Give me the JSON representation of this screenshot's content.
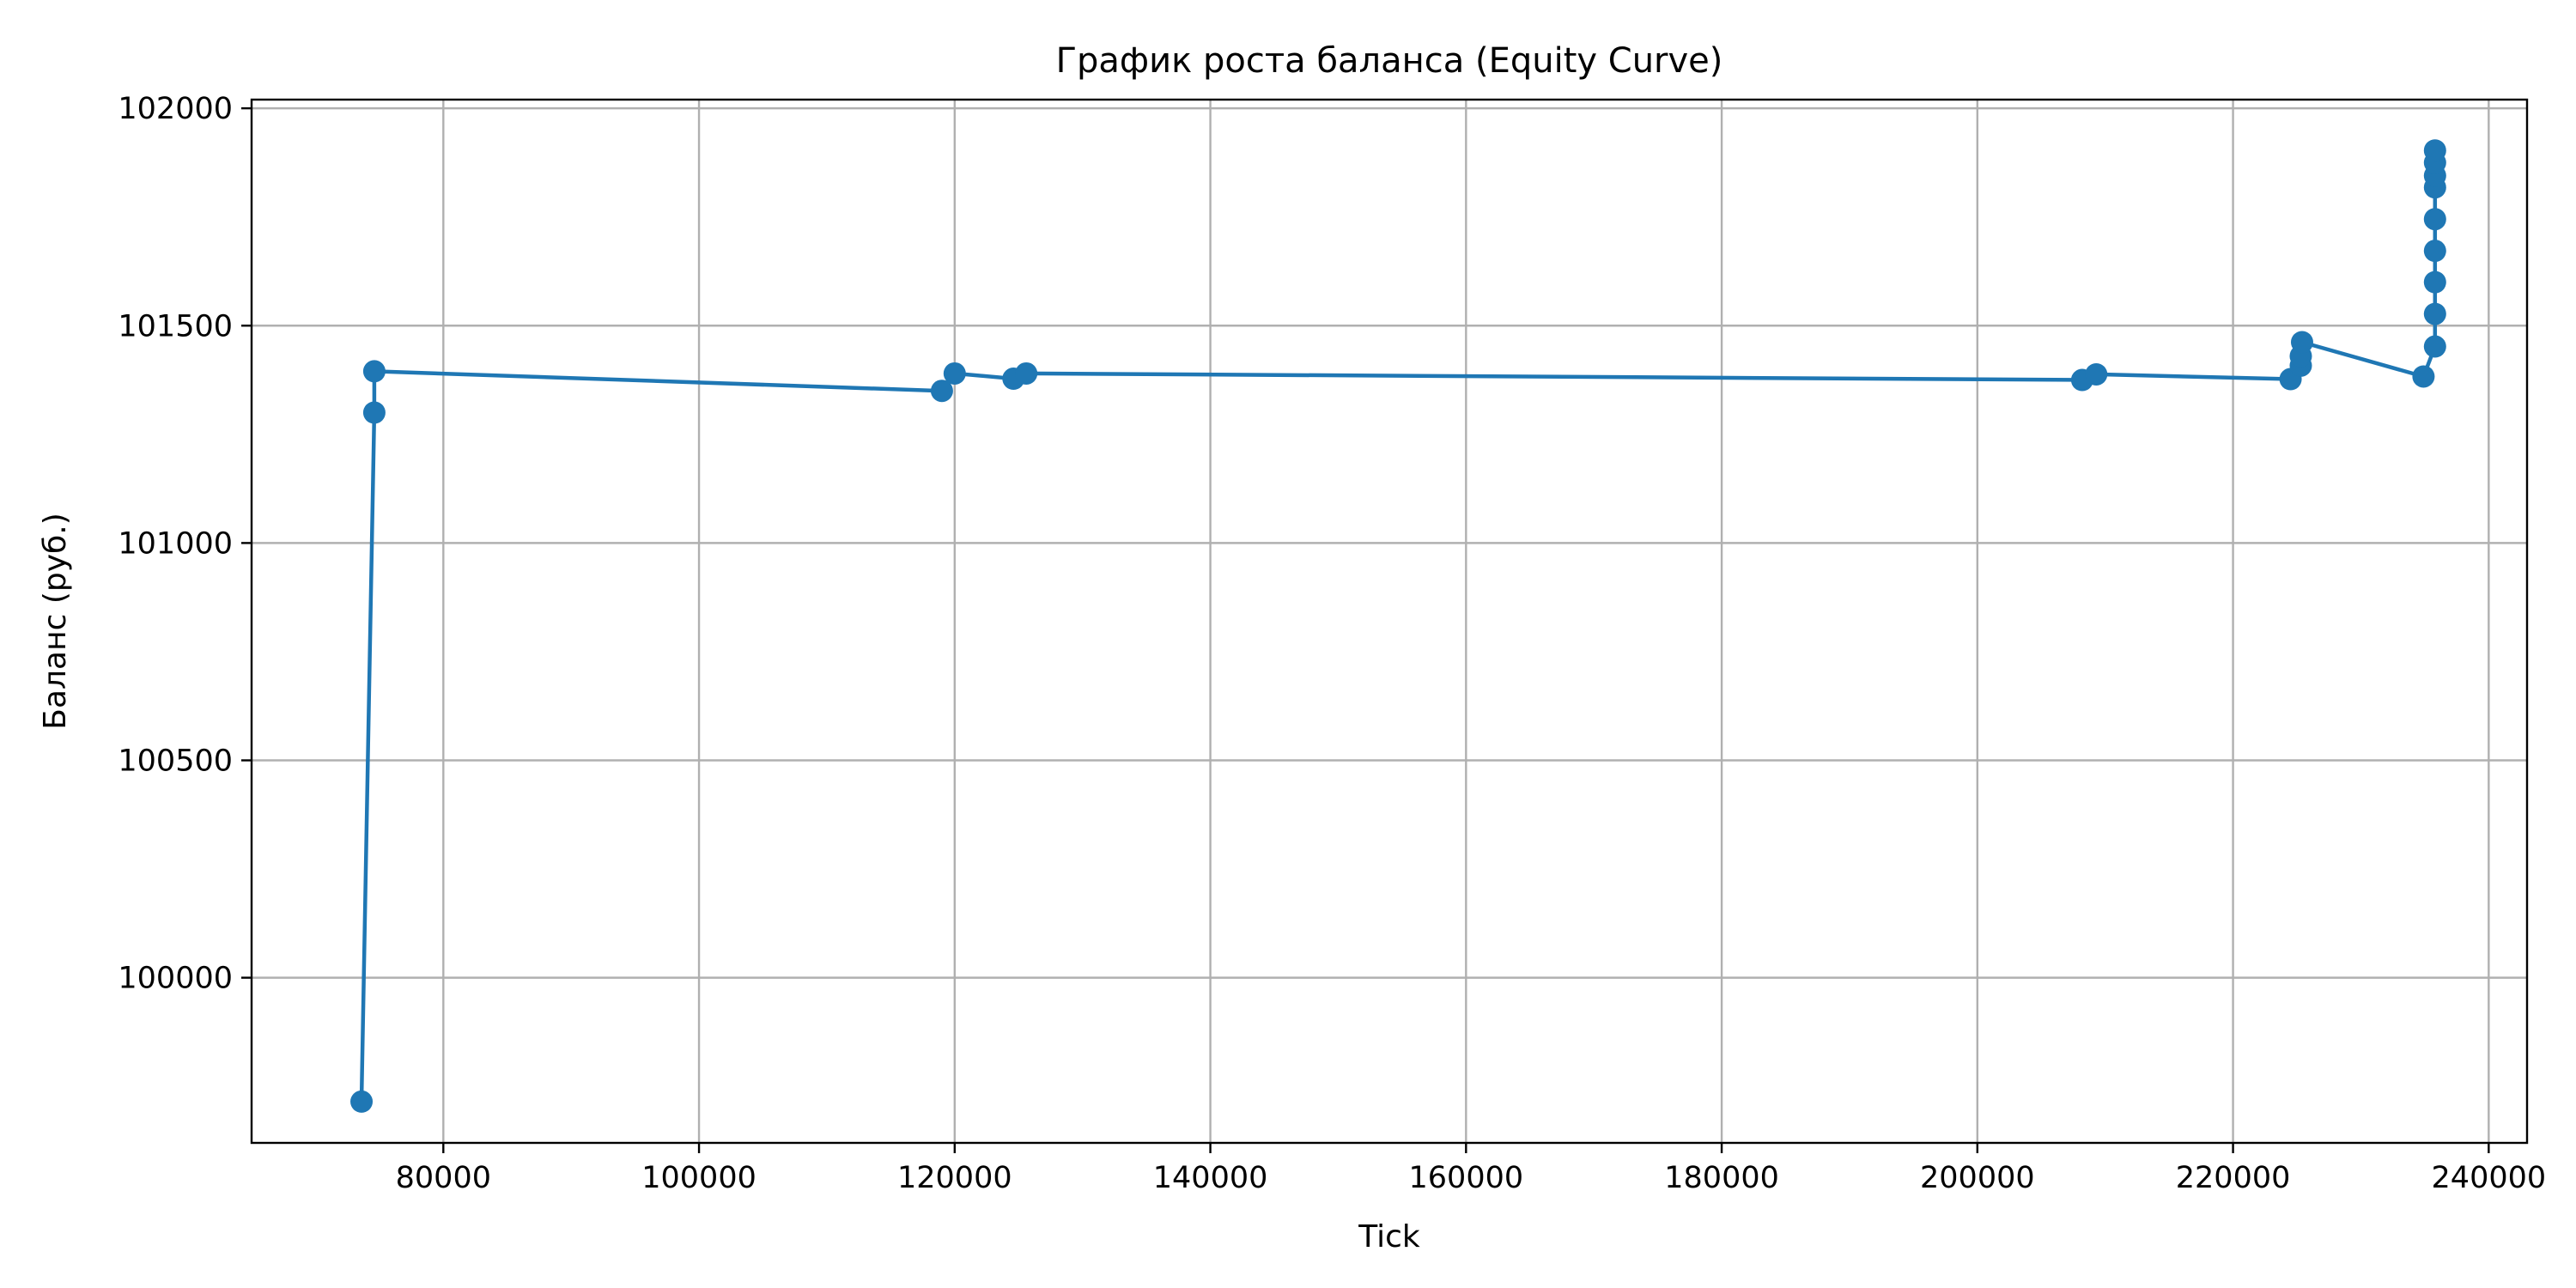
{
  "chart_data": {
    "type": "line",
    "title": "График роста баланса (Equity Curve)",
    "xlabel": "Tick",
    "ylabel": "Баланс (руб.)",
    "xlim": [
      65000,
      243000
    ],
    "ylim": [
      99620,
      102020
    ],
    "xticks": [
      80000,
      100000,
      120000,
      140000,
      160000,
      180000,
      200000,
      220000,
      240000
    ],
    "yticks": [
      100000,
      100500,
      101000,
      101500,
      102000
    ],
    "grid": true,
    "marker": "circle",
    "color": "#1f77b4",
    "series": [
      {
        "points": [
          [
            73600,
            99715
          ],
          [
            74600,
            101300
          ],
          [
            74600,
            101395
          ],
          [
            119000,
            101350
          ],
          [
            120000,
            101390
          ],
          [
            124600,
            101378
          ],
          [
            125600,
            101390
          ],
          [
            208200,
            101375
          ],
          [
            209300,
            101388
          ],
          [
            224500,
            101377
          ],
          [
            225300,
            101408
          ],
          [
            225300,
            101430
          ],
          [
            225400,
            101462
          ],
          [
            234900,
            101383
          ],
          [
            235800,
            101452
          ],
          [
            235800,
            101527
          ],
          [
            235800,
            101600
          ],
          [
            235800,
            101672
          ],
          [
            235800,
            101745
          ],
          [
            235800,
            101818
          ],
          [
            235800,
            101845
          ],
          [
            235800,
            101875
          ],
          [
            235800,
            101903
          ]
        ]
      }
    ]
  }
}
